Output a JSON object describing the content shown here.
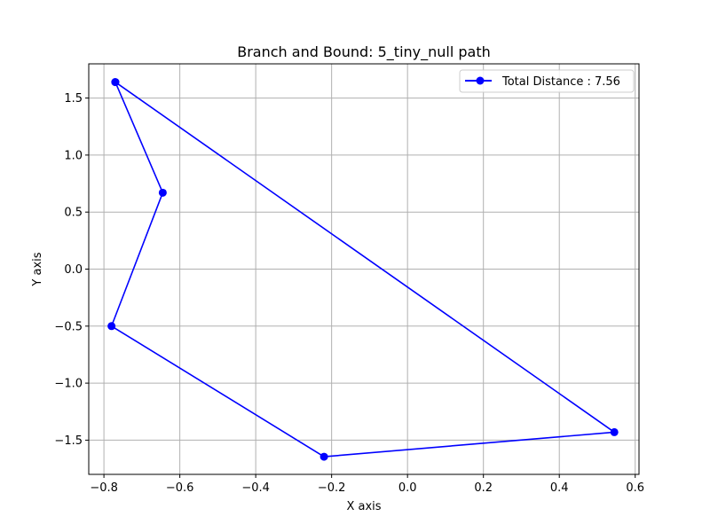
{
  "chart_data": {
    "type": "line",
    "title": "Branch and Bound: 5_tiny_null path",
    "xlabel": "X axis",
    "ylabel": "Y axis",
    "xlim": [
      -0.84,
      0.61
    ],
    "ylim": [
      -1.8,
      1.8
    ],
    "xticks": [
      -0.8,
      -0.6,
      -0.4,
      -0.2,
      0.0,
      0.2,
      0.4,
      0.6
    ],
    "xtick_labels": [
      "−0.8",
      "−0.6",
      "−0.4",
      "−0.2",
      "0.0",
      "0.2",
      "0.4",
      "0.6"
    ],
    "yticks": [
      -1.5,
      -1.0,
      -0.5,
      0.0,
      0.5,
      1.0,
      1.5
    ],
    "ytick_labels": [
      "−1.5",
      "−1.0",
      "−0.5",
      "0.0",
      "0.5",
      "1.0",
      "1.5"
    ],
    "grid": true,
    "legend_position": "top-right",
    "series": [
      {
        "name": "Total Distance : 7.56",
        "color": "#0000ff",
        "marker": "circle",
        "points": [
          {
            "x": -0.77,
            "y": 1.64
          },
          {
            "x": 0.545,
            "y": -1.43
          },
          {
            "x": -0.22,
            "y": -1.645
          },
          {
            "x": -0.78,
            "y": -0.5
          },
          {
            "x": -0.645,
            "y": 0.67
          },
          {
            "x": -0.77,
            "y": 1.64
          }
        ]
      }
    ]
  }
}
